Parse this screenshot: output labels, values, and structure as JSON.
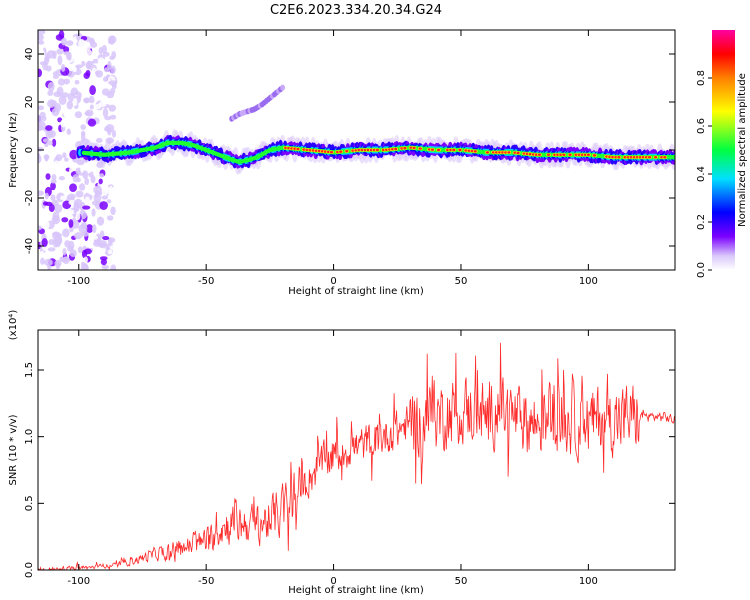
{
  "figure": {
    "title": "C2E6.2023.334.20.34.G24"
  },
  "chart_data": [
    {
      "type": "heatmap",
      "title": "",
      "xlabel": "Height of straight line (km)",
      "ylabel": "Frequency (Hz)",
      "xlim": [
        -116,
        134
      ],
      "ylim": [
        -50,
        50
      ],
      "xticks": [
        -100,
        -50,
        0,
        50,
        100
      ],
      "yticks": [
        -40,
        -20,
        0,
        20,
        40
      ],
      "colorbar": {
        "label": "Normalized spectral amplitude",
        "range": [
          0,
          1
        ],
        "ticks": [
          0.0,
          0.2,
          0.4,
          0.6,
          0.8
        ],
        "colormap": [
          "#ffffff",
          "#d8c6fa",
          "#7a00ff",
          "#0000ff",
          "#00e0ff",
          "#00ff40",
          "#ffff00",
          "#ff8000",
          "#ff0000",
          "#ff00a0"
        ]
      },
      "ridge_frequency": {
        "x": [
          -100,
          -90,
          -80,
          -70,
          -65,
          -60,
          -55,
          -50,
          -45,
          -40,
          -37,
          -33,
          -30,
          -25,
          -20,
          -10,
          0,
          10,
          20,
          30,
          40,
          50,
          60,
          70,
          80,
          90,
          100,
          110,
          120,
          130
        ],
        "y": [
          -1,
          -2,
          -1,
          1,
          3,
          3,
          2,
          0,
          -2,
          -4,
          -5,
          -4,
          -3,
          0,
          1,
          0,
          -1,
          0,
          0,
          1,
          0,
          0,
          -1,
          -1,
          -2,
          -2,
          -2,
          -3,
          -3,
          -3
        ]
      },
      "secondary_feature": {
        "x": [
          -40,
          -37,
          -34,
          -31,
          -28,
          -20
        ],
        "y": [
          13,
          15,
          16,
          17,
          19,
          26
        ]
      }
    },
    {
      "type": "line",
      "title": "",
      "xlabel": "Height of straight line (km)",
      "ylabel": "SNR (10 * v/v)",
      "scale_label": "(x10⁴)",
      "xlim": [
        -116,
        134
      ],
      "ylim": [
        0,
        1.8
      ],
      "xticks": [
        -100,
        -50,
        0,
        50,
        100
      ],
      "yticks": [
        0.0,
        0.5,
        1.0,
        1.5
      ],
      "color": "#ff2a2a",
      "series": [
        {
          "x": [
            -116,
            -105,
            -95,
            -85,
            -80,
            -75,
            -70,
            -60,
            -50,
            -45,
            -40,
            -35,
            -30,
            -25,
            -20,
            -15,
            -10,
            -5,
            0,
            5,
            10,
            15,
            20,
            25,
            30,
            35,
            40,
            45,
            50,
            55,
            60,
            65,
            70,
            75,
            80,
            85,
            90,
            95,
            100,
            105,
            110,
            115,
            120,
            125,
            130,
            134
          ],
          "y": [
            0.0,
            0.01,
            0.02,
            0.04,
            0.06,
            0.09,
            0.12,
            0.16,
            0.22,
            0.3,
            0.35,
            0.35,
            0.34,
            0.38,
            0.45,
            0.55,
            0.68,
            0.8,
            0.85,
            0.9,
            0.93,
            0.97,
            1.0,
            1.05,
            1.1,
            1.12,
            1.15,
            1.17,
            1.2,
            1.2,
            1.15,
            1.2,
            1.15,
            1.12,
            1.1,
            1.15,
            1.12,
            1.1,
            1.1,
            1.15,
            1.12,
            1.15,
            1.15,
            1.15,
            1.15,
            1.12
          ]
        }
      ]
    }
  ]
}
